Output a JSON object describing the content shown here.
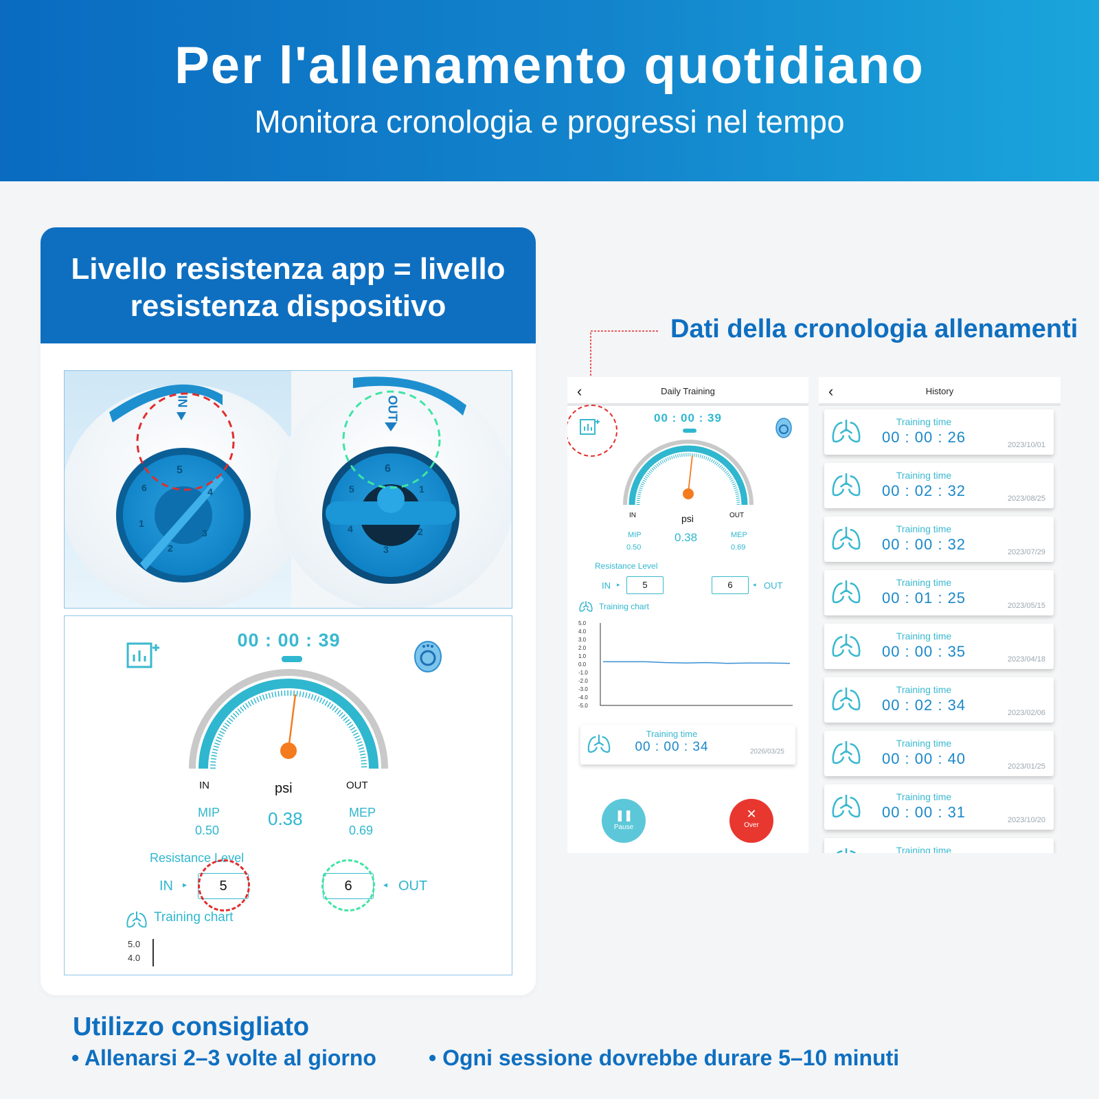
{
  "header": {
    "title": "Per l'allenamento quotidiano",
    "subtitle": "Monitora cronologia e progressi nel tempo"
  },
  "left_card": {
    "banner": "Livello resistenza app = livello resistenza dispositivo",
    "device_labels": {
      "in": "IN",
      "out": "OUT"
    },
    "dial_numbers_left": [
      "5",
      "4",
      "3",
      "2",
      "1",
      "6"
    ],
    "dial_numbers_right": [
      "6",
      "1",
      "2",
      "3",
      "4",
      "5"
    ],
    "gauge": {
      "timer": "00 : 00 : 39",
      "in_label": "IN",
      "out_label": "OUT",
      "unit": "psi",
      "value": "0.38",
      "mip_label": "MIP",
      "mip_value": "0.50",
      "mep_label": "MEP",
      "mep_value": "0.69",
      "resistance_label": "Resistance Level",
      "in_level": "5",
      "out_level": "6",
      "training_chart_label": "Training chart",
      "y_ticks": [
        "5.0",
        "4.0"
      ]
    }
  },
  "callout": {
    "title": "Dati della cronologia allenamenti"
  },
  "daily_training": {
    "title": "Daily Training",
    "timer": "00 : 00 : 39",
    "in_label": "IN",
    "out_label": "OUT",
    "unit": "psi",
    "value": "0.38",
    "mip_label": "MIP",
    "mip_value": "0.50",
    "mep_label": "MEP",
    "mep_value": "0.69",
    "resistance_label": "Resistance Level",
    "in_level": "5",
    "out_level": "6",
    "training_chart_label": "Training chart",
    "training_time_label": "Training time",
    "training_time": "00 : 00 : 34",
    "training_date": "2026/03/25",
    "pause_label": "Pause",
    "over_label": "Over",
    "chart_data": {
      "type": "line",
      "title": "",
      "xlabel": "",
      "ylabel": "",
      "y_ticks": [
        "5.0",
        "4.0",
        "3.0",
        "2.0",
        "1.0",
        "0.0",
        "-1.0",
        "-2.0",
        "-3.0",
        "-4.0",
        "-5.0"
      ],
      "ylim": [
        -5,
        5
      ],
      "series": [
        {
          "values": [
            0.3,
            0.3,
            0.3,
            0.2,
            0.15,
            0.2,
            0.1,
            0.15,
            0.15,
            0.1
          ]
        }
      ]
    }
  },
  "history": {
    "title": "History",
    "item_label": "Training time",
    "items": [
      {
        "time": "00 : 00 : 26",
        "date": "2023/10/01"
      },
      {
        "time": "00 : 02 : 32",
        "date": "2023/08/25"
      },
      {
        "time": "00 : 00 : 32",
        "date": "2023/07/29"
      },
      {
        "time": "00 : 01 : 25",
        "date": "2023/05/15"
      },
      {
        "time": "00 : 00 : 35",
        "date": "2023/04/18"
      },
      {
        "time": "00 : 02 : 34",
        "date": "2023/02/06"
      },
      {
        "time": "00 : 00 : 40",
        "date": "2023/01/25"
      },
      {
        "time": "00 : 00 : 31",
        "date": "2023/10/20"
      },
      {
        "time": "",
        "date": ""
      }
    ]
  },
  "usage": {
    "title": "Utilizzo consigliato",
    "bullet1": "• Allenarsi 2–3 volte al giorno",
    "bullet2": "• Ogni sessione dovrebbe durare 5–10 minuti"
  },
  "colors": {
    "brand_blue": "#0e6fc0",
    "teal": "#2fb7cf",
    "needle_orange": "#f47b1e",
    "over_red": "#e8372f",
    "pause_teal": "#5cc7d8"
  }
}
